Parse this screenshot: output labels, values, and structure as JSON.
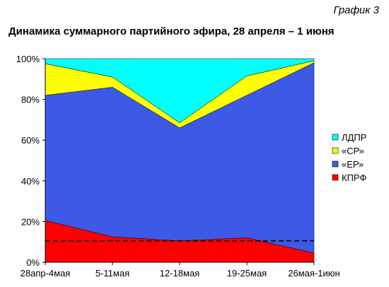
{
  "header": {
    "graph_label": "График 3",
    "title": "Динамика суммарного партийного эфира, 28 апреля – 1 июня"
  },
  "colors": {
    "kprf": "#ff0000",
    "er": "#3c5ae6",
    "sr": "#ffff00",
    "ldpr": "#00ffff",
    "reference_line": "#000000"
  },
  "chart_data": {
    "type": "area",
    "stacked": true,
    "percent": true,
    "title": "Динамика суммарного партийного эфира, 28 апреля – 1 июня",
    "categories": [
      "28апр-4мая",
      "5-11мая",
      "12-18мая",
      "19-25мая",
      "26мая-1июн"
    ],
    "series": [
      {
        "name": "КПРФ",
        "color": "#ff0000",
        "values": [
          20.5,
          12.5,
          10.5,
          12.0,
          4.5
        ]
      },
      {
        "name": "«ЕР»",
        "color": "#3c5ae6",
        "values": [
          61.5,
          73.5,
          55.5,
          70.0,
          93.5
        ]
      },
      {
        "name": "«СР»",
        "color": "#ffff00",
        "values": [
          15.5,
          5.0,
          2.5,
          9.5,
          1.0
        ]
      },
      {
        "name": "ЛДПР",
        "color": "#00ffff",
        "values": [
          2.5,
          9.0,
          31.5,
          8.5,
          1.0
        ]
      }
    ],
    "reference_line": {
      "value": 10.5,
      "style": "dashed"
    },
    "ylim": [
      0,
      100
    ],
    "yticks": [
      "0%",
      "20%",
      "40%",
      "60%",
      "80%",
      "100%"
    ],
    "grid": false,
    "legend_position": "right",
    "legend_order": [
      "ЛДПР",
      "«СР»",
      "«ЕР»",
      "КПРФ"
    ]
  }
}
